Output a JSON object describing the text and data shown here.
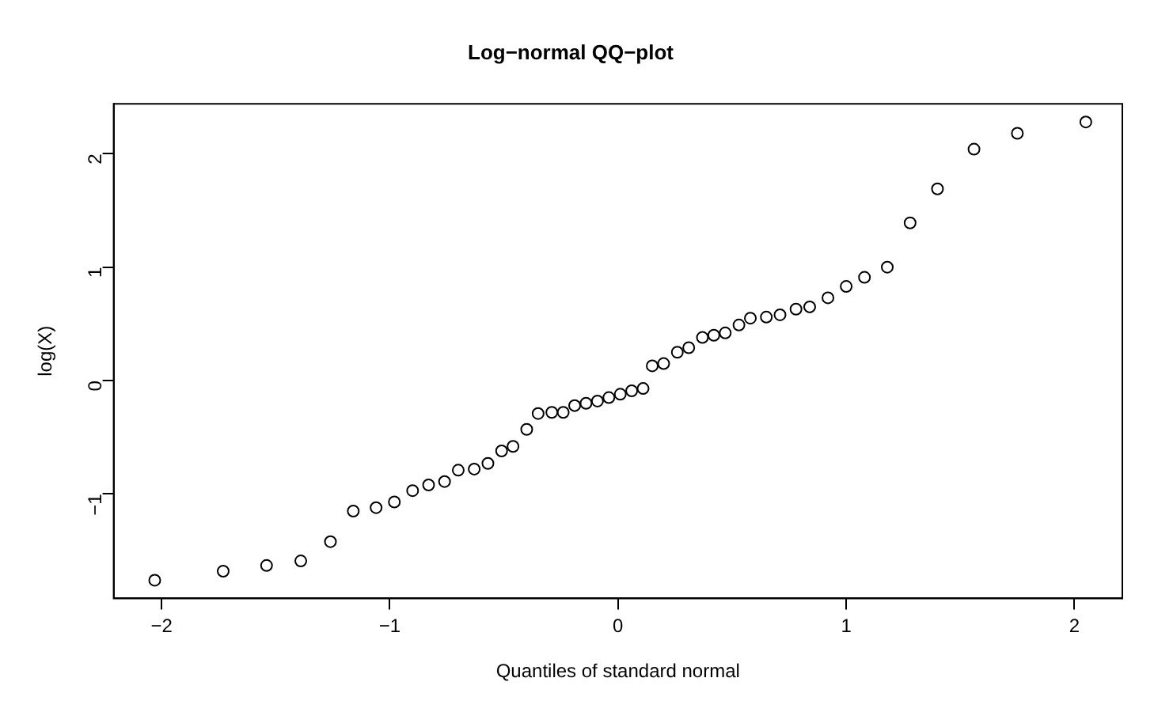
{
  "chart_data": {
    "type": "scatter",
    "title": "Log−normal QQ−plot",
    "xlabel": "Quantiles of standard normal",
    "ylabel": "log(X)",
    "marker": "circle",
    "grid": false,
    "legend": false,
    "xlim": [
      -2.21,
      2.21
    ],
    "xticks": [
      -2,
      -1,
      0,
      1,
      2
    ],
    "ylim": [
      -1.92,
      2.44
    ],
    "yticks": [
      -1,
      0,
      1,
      2
    ],
    "series": [
      {
        "color": "#000000",
        "x": [
          -2.03,
          -1.73,
          -1.54,
          -1.39,
          -1.26,
          -1.16,
          -1.06,
          -0.98,
          -0.9,
          -0.83,
          -0.76,
          -0.7,
          -0.63,
          -0.57,
          -0.51,
          -0.46,
          -0.4,
          -0.35,
          -0.29,
          -0.24,
          -0.19,
          -0.14,
          -0.09,
          -0.04,
          0.01,
          0.06,
          0.11,
          0.15,
          0.2,
          0.26,
          0.31,
          0.37,
          0.42,
          0.47,
          0.53,
          0.58,
          0.65,
          0.71,
          0.78,
          0.84,
          0.92,
          1.0,
          1.08,
          1.18,
          1.28,
          1.4,
          1.56,
          1.75,
          2.05
        ],
        "values": [
          -1.76,
          -1.68,
          -1.63,
          -1.59,
          -1.42,
          -1.15,
          -1.12,
          -1.07,
          -0.97,
          -0.92,
          -0.89,
          -0.79,
          -0.78,
          -0.73,
          -0.62,
          -0.58,
          -0.43,
          -0.29,
          -0.28,
          -0.28,
          -0.22,
          -0.2,
          -0.18,
          -0.15,
          -0.12,
          -0.09,
          -0.07,
          0.13,
          0.15,
          0.25,
          0.29,
          0.38,
          0.4,
          0.42,
          0.49,
          0.55,
          0.56,
          0.58,
          0.63,
          0.65,
          0.73,
          0.83,
          0.91,
          1.0,
          1.39,
          1.69,
          2.04,
          2.18,
          2.28
        ]
      }
    ]
  }
}
